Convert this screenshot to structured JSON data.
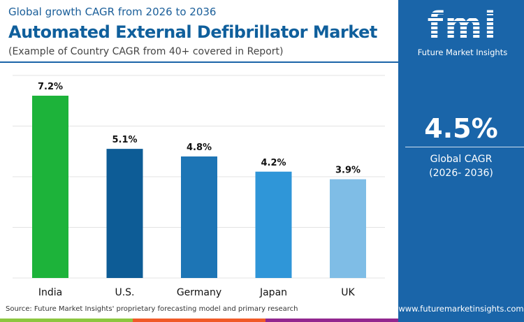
{
  "header": {
    "subtitle": "Global growth CAGR from 2026 to 2036",
    "title": "Automated External Defibrillator Market",
    "note": "(Example of Country CAGR from 40+ covered in Report)"
  },
  "chart_data": {
    "type": "bar",
    "categories": [
      "India",
      "U.S.",
      "Germany",
      "Japan",
      "UK"
    ],
    "values": [
      7.2,
      5.1,
      4.8,
      4.2,
      3.9
    ],
    "data_labels": [
      "7.2%",
      "5.1%",
      "4.8%",
      "4.2%",
      "3.9%"
    ],
    "colors": [
      "#1db33a",
      "#0d5c96",
      "#1d75b5",
      "#2f96d8",
      "#7fbde6"
    ],
    "ylim": [
      0,
      8
    ],
    "grid": true,
    "unit": "%"
  },
  "source": "Source: Future Market Insights' proprietary forecasting model and primary research",
  "panel": {
    "logo_text": "fmi",
    "brand": "Future Market Insights",
    "value": "4.5%",
    "label": "Global CAGR",
    "period": "(2026- 2036)",
    "url": "www.futuremarketinsights.com"
  },
  "stripe_colors": [
    "#8cc63f",
    "#f05a28",
    "#92278f"
  ]
}
